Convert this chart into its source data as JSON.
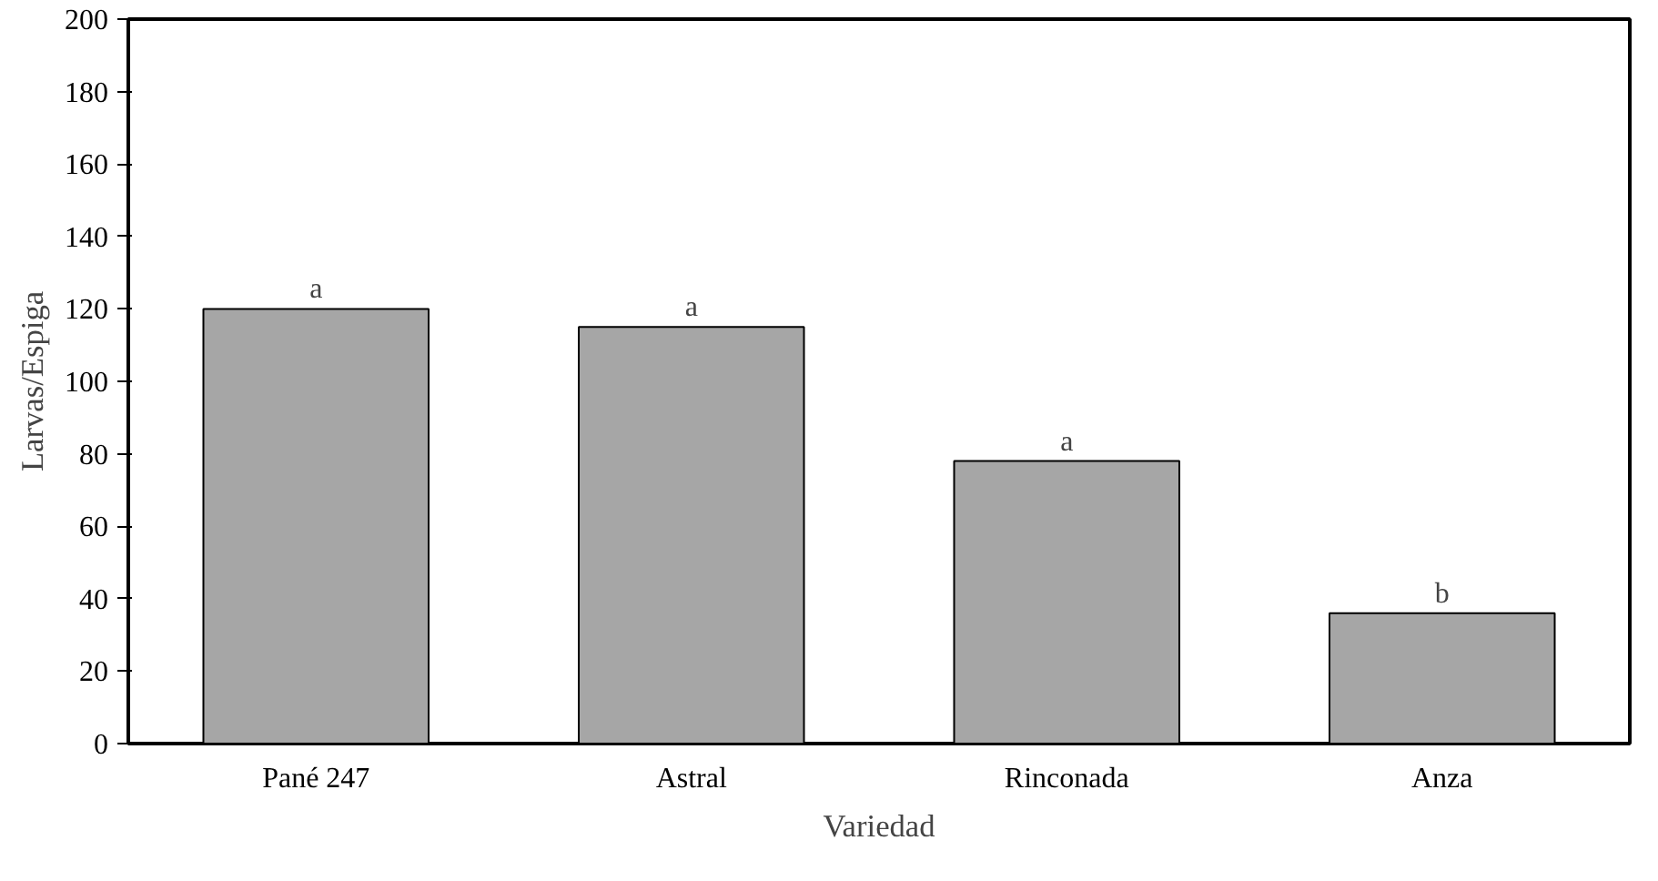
{
  "chart_data": {
    "type": "bar",
    "xlabel": "Variedad",
    "ylabel": "Larvas/Espiga",
    "categories": [
      "Pané 247",
      "Astral",
      "Rinconada",
      "Anza"
    ],
    "values": [
      120,
      115,
      78,
      36
    ],
    "color": "#a6a6a6",
    "ylim": [
      0,
      200
    ],
    "yticks": [
      0,
      20,
      40,
      60,
      80,
      100,
      120,
      140,
      160,
      180,
      200
    ],
    "grid": false,
    "annotations": [
      {
        "text": "a",
        "x": "Pané 247",
        "y": 120
      },
      {
        "text": "a",
        "x": "Astral",
        "y": 115
      },
      {
        "text": "a",
        "x": "Rinconada",
        "y": 78
      },
      {
        "text": "b",
        "x": "Anza",
        "y": 36
      }
    ]
  }
}
